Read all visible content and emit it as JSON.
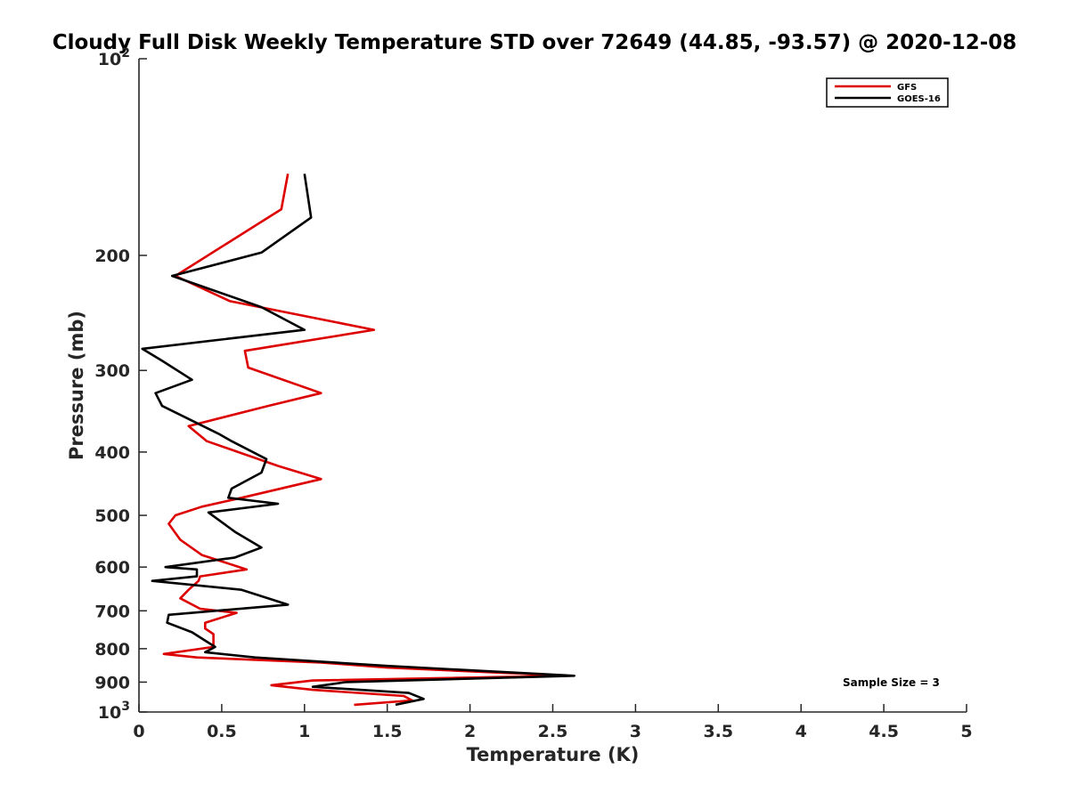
{
  "chart_data": {
    "type": "line",
    "title": "Cloudy Full Disk Weekly Temperature STD over 72649 (44.85, -93.57) @ 2020-12-08",
    "xlabel": "Temperature (K)",
    "ylabel": "Pressure (mb)",
    "xlim": [
      0,
      5
    ],
    "ylim": [
      100,
      1000
    ],
    "y_scale": "log",
    "y_reversed": true,
    "grid": false,
    "x_ticks": [
      "0",
      "0.5",
      "1",
      "1.5",
      "2",
      "2.5",
      "3",
      "3.5",
      "4",
      "4.5",
      "5"
    ],
    "y_ticks": [
      {
        "value": 100,
        "base": "10",
        "exp": "2"
      },
      {
        "value": 200,
        "label": "200"
      },
      {
        "value": 300,
        "label": "300"
      },
      {
        "value": 400,
        "label": "400"
      },
      {
        "value": 500,
        "label": "500"
      },
      {
        "value": 600,
        "label": "600"
      },
      {
        "value": 700,
        "label": "700"
      },
      {
        "value": 800,
        "label": "800"
      },
      {
        "value": 900,
        "label": "900"
      },
      {
        "value": 1000,
        "base": "10",
        "exp": "3"
      }
    ],
    "legend": {
      "placement": "top-right"
    },
    "annotation": "Sample Size = 3",
    "series": [
      {
        "name": "GFS",
        "color": "#dd0000",
        "points": [
          [
            0.9,
            150
          ],
          [
            0.86,
            170
          ],
          [
            0.22,
            215
          ],
          [
            0.55,
            235
          ],
          [
            1.42,
            260
          ],
          [
            0.64,
            280
          ],
          [
            0.66,
            297
          ],
          [
            1.1,
            325
          ],
          [
            0.78,
            340
          ],
          [
            0.3,
            365
          ],
          [
            0.41,
            385
          ],
          [
            0.84,
            420
          ],
          [
            1.1,
            440
          ],
          [
            0.62,
            470
          ],
          [
            0.38,
            485
          ],
          [
            0.22,
            500
          ],
          [
            0.18,
            515
          ],
          [
            0.25,
            545
          ],
          [
            0.38,
            575
          ],
          [
            0.65,
            605
          ],
          [
            0.37,
            620
          ],
          [
            0.36,
            630
          ],
          [
            0.3,
            650
          ],
          [
            0.25,
            670
          ],
          [
            0.37,
            695
          ],
          [
            0.59,
            705
          ],
          [
            0.4,
            730
          ],
          [
            0.4,
            745
          ],
          [
            0.45,
            760
          ],
          [
            0.45,
            795
          ],
          [
            0.15,
            815
          ],
          [
            0.35,
            825
          ],
          [
            1.1,
            840
          ],
          [
            1.5,
            855
          ],
          [
            2.6,
            880
          ],
          [
            1.05,
            895
          ],
          [
            0.8,
            910
          ],
          [
            1.05,
            925
          ],
          [
            1.6,
            945
          ],
          [
            1.65,
            960
          ],
          [
            1.3,
            975
          ]
        ]
      },
      {
        "name": "GOES-16",
        "color": "#000000",
        "points": [
          [
            1.0,
            150
          ],
          [
            1.04,
            175
          ],
          [
            0.74,
            198
          ],
          [
            0.2,
            215
          ],
          [
            0.74,
            240
          ],
          [
            1.0,
            260
          ],
          [
            0.02,
            278
          ],
          [
            0.14,
            290
          ],
          [
            0.32,
            310
          ],
          [
            0.1,
            325
          ],
          [
            0.14,
            340
          ],
          [
            0.48,
            375
          ],
          [
            0.56,
            385
          ],
          [
            0.77,
            410
          ],
          [
            0.74,
            430
          ],
          [
            0.56,
            455
          ],
          [
            0.54,
            470
          ],
          [
            0.84,
            480
          ],
          [
            0.42,
            495
          ],
          [
            0.58,
            530
          ],
          [
            0.74,
            560
          ],
          [
            0.58,
            580
          ],
          [
            0.16,
            600
          ],
          [
            0.35,
            605
          ],
          [
            0.35,
            620
          ],
          [
            0.08,
            630
          ],
          [
            0.62,
            650
          ],
          [
            0.9,
            685
          ],
          [
            0.18,
            710
          ],
          [
            0.17,
            730
          ],
          [
            0.32,
            755
          ],
          [
            0.46,
            795
          ],
          [
            0.4,
            810
          ],
          [
            0.7,
            825
          ],
          [
            1.5,
            850
          ],
          [
            2.63,
            880
          ],
          [
            1.25,
            900
          ],
          [
            1.05,
            915
          ],
          [
            1.63,
            935
          ],
          [
            1.72,
            955
          ],
          [
            1.55,
            975
          ]
        ]
      }
    ]
  }
}
